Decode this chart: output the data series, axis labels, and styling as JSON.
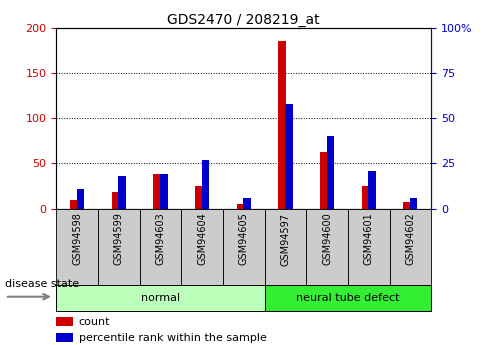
{
  "title": "GDS2470 / 208219_at",
  "samples": [
    "GSM94598",
    "GSM94599",
    "GSM94603",
    "GSM94604",
    "GSM94605",
    "GSM94597",
    "GSM94600",
    "GSM94601",
    "GSM94602"
  ],
  "counts": [
    10,
    18,
    38,
    25,
    5,
    185,
    63,
    25,
    7
  ],
  "percentiles": [
    11,
    18,
    19,
    27,
    6,
    58,
    40,
    21,
    6
  ],
  "groups": [
    {
      "label": "normal",
      "start": 0,
      "end": 5,
      "color": "#bbffbb"
    },
    {
      "label": "neural tube defect",
      "start": 5,
      "end": 9,
      "color": "#33ee33"
    }
  ],
  "count_color": "#cc0000",
  "percentile_color": "#0000cc",
  "ylim_left": [
    0,
    200
  ],
  "ylim_right": [
    0,
    100
  ],
  "yticks_left": [
    0,
    50,
    100,
    150,
    200
  ],
  "yticks_right": [
    0,
    25,
    50,
    75,
    100
  ],
  "tick_bg_color": "#cccccc",
  "legend_count": "count",
  "legend_percentile": "percentile rank within the sample",
  "disease_state_label": "disease state"
}
